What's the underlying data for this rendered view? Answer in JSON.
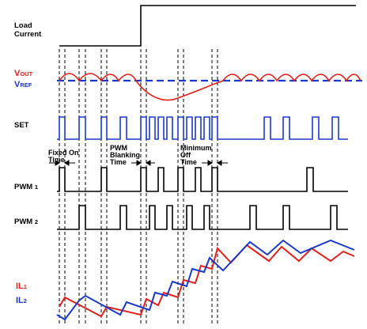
{
  "signals": {
    "load_current": {
      "line1": "Load",
      "line2": "Current"
    },
    "vout": {
      "main": "V",
      "sub": "OUT"
    },
    "vref": {
      "main": "V",
      "sub": "REF"
    },
    "set": "SET",
    "pwm1": {
      "main": "PWM",
      "sub": "1"
    },
    "pwm2": {
      "main": "PWM",
      "sub": "2"
    },
    "il1": {
      "main": "IL",
      "sub": "1"
    },
    "il2": {
      "main": "IL",
      "sub": "2"
    }
  },
  "annotations": {
    "fixed_on_time": {
      "line1": "Fixed On",
      "line2": "Time"
    },
    "pwm_blanking_time": {
      "line1": "PWM",
      "line2": "Blanking",
      "line3": "Time"
    },
    "minimum_off_time": {
      "line1": "Minimum",
      "line2": "Off",
      "line3": "Time"
    }
  },
  "colors": {
    "vout": "#e0201c",
    "vref": "#1b39c8",
    "set": "#1b39c8",
    "il1": "#e0201c",
    "il2": "#1b39c8",
    "trace": "#000000"
  }
}
